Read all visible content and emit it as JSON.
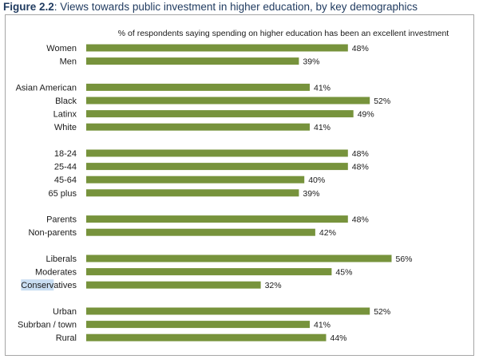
{
  "figure": {
    "label": "Figure 2.2",
    "title": ": Views towards public investment in higher education, by key demographics"
  },
  "chart_data": {
    "type": "bar",
    "orientation": "horizontal",
    "title": "% of respondents saying spending on higher education has been an excellent investment",
    "bar_color": "#77933c",
    "highlight_color": "#c9def2",
    "groups": [
      {
        "items": [
          {
            "label": "Women",
            "value": 48,
            "value_label": "48%"
          },
          {
            "label": "Men",
            "value": 39,
            "value_label": "39%"
          }
        ]
      },
      {
        "items": [
          {
            "label": "Asian American",
            "value": 41,
            "value_label": "41%"
          },
          {
            "label": "Black",
            "value": 52,
            "value_label": "52%"
          },
          {
            "label": "Latinx",
            "value": 49,
            "value_label": "49%"
          },
          {
            "label": "White",
            "value": 41,
            "value_label": "41%"
          }
        ]
      },
      {
        "items": [
          {
            "label": "18-24",
            "value": 48,
            "value_label": "48%"
          },
          {
            "label": "25-44",
            "value": 48,
            "value_label": "48%"
          },
          {
            "label": "45-64",
            "value": 40,
            "value_label": "40%"
          },
          {
            "label": "65 plus",
            "value": 39,
            "value_label": "39%"
          }
        ]
      },
      {
        "items": [
          {
            "label": "Parents",
            "value": 48,
            "value_label": "48%"
          },
          {
            "label": "Non-parents",
            "value": 42,
            "value_label": "42%"
          }
        ]
      },
      {
        "items": [
          {
            "label": "Liberals",
            "value": 56,
            "value_label": "56%"
          },
          {
            "label": "Moderates",
            "value": 45,
            "value_label": "45%"
          },
          {
            "label": "Conservatives",
            "value": 32,
            "value_label": "32%",
            "highlighted_text": "Conserv"
          }
        ]
      },
      {
        "items": [
          {
            "label": "Urban",
            "value": 52,
            "value_label": "52%"
          },
          {
            "label": "Subrban / town",
            "value": 41,
            "value_label": "41%"
          },
          {
            "label": "Rural",
            "value": 44,
            "value_label": "44%"
          }
        ]
      }
    ]
  }
}
